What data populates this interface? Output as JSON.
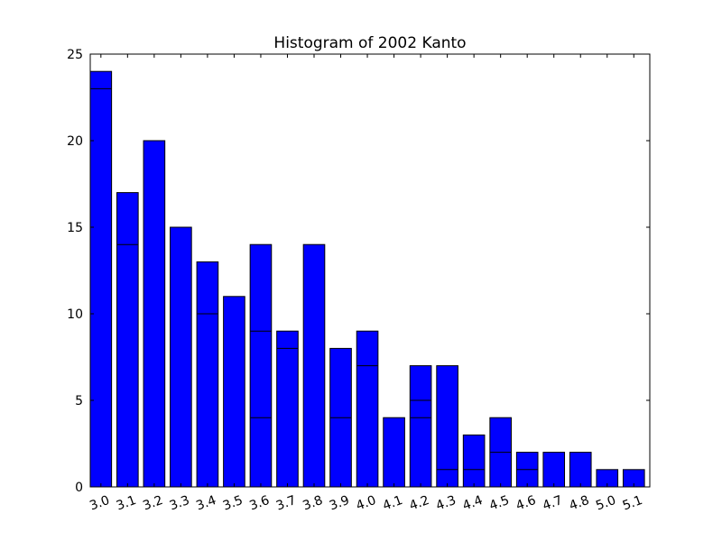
{
  "chart_data": {
    "type": "bar",
    "title": "Histogram of 2002 Kanto",
    "xlabel": "",
    "ylabel": "",
    "categories": [
      "3.0",
      "3.1",
      "3.2",
      "3.3",
      "3.4",
      "3.5",
      "3.6",
      "3.7",
      "3.8",
      "3.9",
      "4.0",
      "4.1",
      "4.2",
      "4.3",
      "4.4",
      "4.5",
      "4.6",
      "4.7",
      "4.8",
      "5.0",
      "5.1"
    ],
    "values": [
      24,
      17,
      20,
      15,
      13,
      11,
      14,
      9,
      14,
      8,
      9,
      4,
      7,
      7,
      3,
      4,
      2,
      2,
      2,
      1,
      1
    ],
    "internal_segment_lines": [
      [
        23
      ],
      [
        14
      ],
      [],
      [],
      [
        10
      ],
      [],
      [
        9,
        4
      ],
      [
        8
      ],
      [],
      [
        4
      ],
      [
        7
      ],
      [],
      [
        5,
        4
      ],
      [
        1
      ],
      [
        1
      ],
      [
        2
      ],
      [
        1
      ],
      [],
      [],
      [],
      []
    ],
    "ylim": [
      0,
      25
    ],
    "yticks": [
      0,
      5,
      10,
      15,
      20,
      25
    ],
    "xtick_rotation_deg": 20,
    "bar_color": "#0000ff",
    "edge_color": "#000000",
    "grid": false,
    "legend": "none"
  }
}
